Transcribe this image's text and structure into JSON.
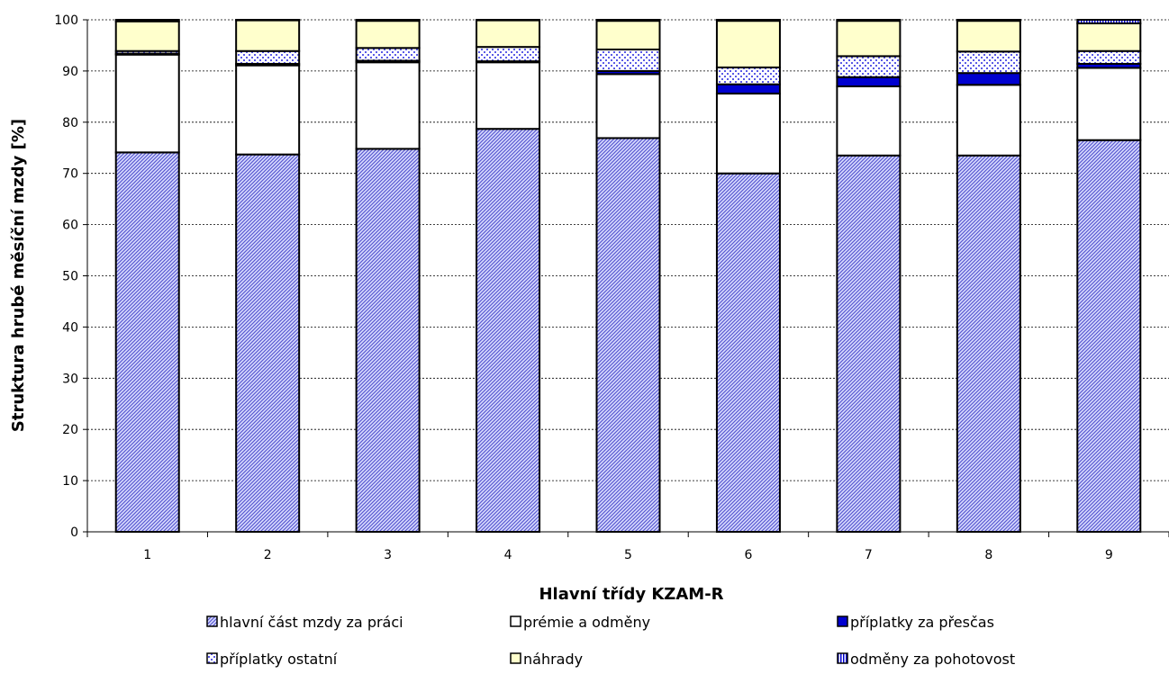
{
  "chart_data": {
    "type": "bar",
    "stacked": true,
    "title": "",
    "xlabel": "Hlavní třídy KZAM-R",
    "ylabel": "Struktura hrubé měsíční mzdy [%]",
    "ylim": [
      0,
      100
    ],
    "yticks": [
      0,
      10,
      20,
      30,
      40,
      50,
      60,
      70,
      80,
      90,
      100
    ],
    "grid": "horizontal-dashed",
    "legend_position": "bottom",
    "categories": [
      "1",
      "2",
      "3",
      "4",
      "5",
      "6",
      "7",
      "8",
      "9"
    ],
    "series": [
      {
        "name": "hlavní část mzdy za práci",
        "pattern": "diagonal-hatch",
        "color": "#7b7bd6",
        "values": [
          74.1,
          73.7,
          74.8,
          78.7,
          76.9,
          70.0,
          73.5,
          73.5,
          76.5
        ]
      },
      {
        "name": "prémie a odměny",
        "pattern": "solid",
        "color": "#ffffff",
        "values": [
          19.1,
          17.4,
          16.9,
          13.0,
          12.5,
          15.6,
          13.5,
          13.8,
          14.1
        ]
      },
      {
        "name": "příplatky  za přesčas",
        "pattern": "solid",
        "color": "#0000d0",
        "values": [
          0.2,
          0.3,
          0.3,
          0.2,
          0.6,
          1.8,
          1.8,
          2.3,
          0.8
        ]
      },
      {
        "name": "příplatky ostatní",
        "pattern": "dots",
        "color": "#9999ff",
        "values": [
          0.5,
          2.5,
          2.5,
          2.8,
          4.2,
          3.3,
          4.1,
          4.2,
          2.5
        ]
      },
      {
        "name": "náhrady",
        "pattern": "solid",
        "color": "#ffffcc",
        "values": [
          5.8,
          6.0,
          5.3,
          5.2,
          5.6,
          9.1,
          6.9,
          6.0,
          5.4
        ]
      },
      {
        "name": "odměny za pohotovost",
        "pattern": "vertical-stripes",
        "color": "#0000d0",
        "values": [
          0.3,
          0.1,
          0.2,
          0.1,
          0.2,
          0.2,
          0.2,
          0.2,
          0.7
        ]
      }
    ]
  }
}
